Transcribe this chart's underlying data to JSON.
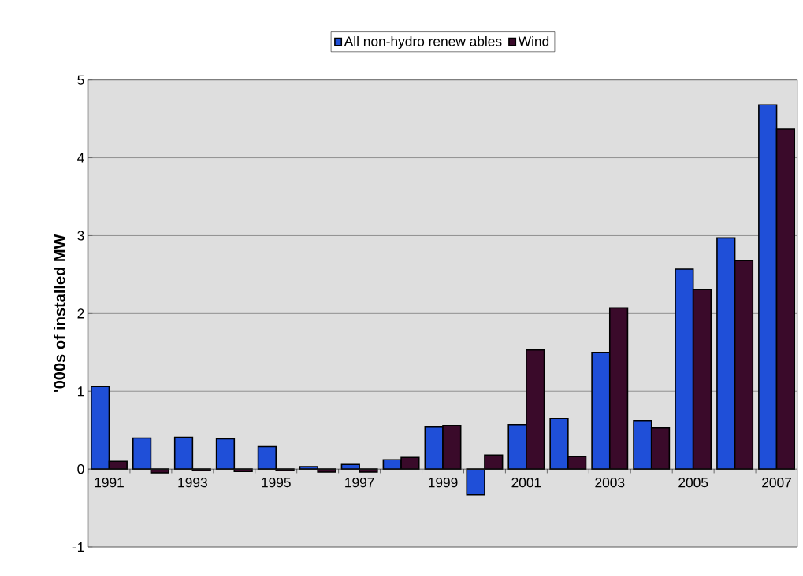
{
  "chart_data": {
    "type": "bar",
    "ylabel": "'000s of installed MW",
    "categories": [
      "1991",
      null,
      "1993",
      null,
      "1995",
      null,
      "1997",
      null,
      "1999",
      null,
      "2001",
      null,
      "2003",
      null,
      "2005",
      null,
      "2007"
    ],
    "series": [
      {
        "name": "All non-hydro renew ables",
        "color": "#1f4fd8",
        "values": [
          1.06,
          0.4,
          0.41,
          0.39,
          0.29,
          0.03,
          0.06,
          0.12,
          0.54,
          -0.33,
          0.57,
          0.65,
          1.5,
          0.62,
          2.57,
          2.97,
          4.68
        ]
      },
      {
        "name": "Wind",
        "color": "#3a0a2a",
        "values": [
          0.1,
          -0.05,
          -0.02,
          -0.03,
          -0.02,
          -0.04,
          -0.04,
          0.15,
          0.56,
          0.18,
          1.53,
          0.16,
          2.07,
          0.53,
          2.31,
          2.68,
          4.37
        ]
      }
    ],
    "ylim": [
      -1,
      5
    ],
    "yticks": [
      -1,
      0,
      1,
      2,
      3,
      4,
      5
    ],
    "grid": "y",
    "legend": "top"
  }
}
